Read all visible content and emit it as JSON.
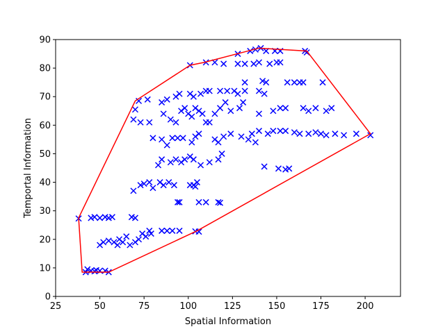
{
  "chart_data": {
    "type": "scatter",
    "xlabel": "Spatial Information",
    "ylabel": "Temportal Information",
    "xlim": [
      25,
      220
    ],
    "ylim": [
      0,
      90
    ],
    "xticks": [
      25,
      50,
      75,
      100,
      125,
      150,
      175,
      200
    ],
    "yticks": [
      0,
      10,
      20,
      30,
      40,
      50,
      60,
      70,
      80,
      90
    ],
    "points": {
      "color": "#0000ff",
      "marker": "x",
      "x": [
        43,
        45,
        47,
        50,
        53,
        55,
        42,
        48,
        45,
        47,
        50,
        53,
        55,
        57,
        68,
        70,
        38,
        50,
        52,
        55,
        58,
        60,
        61,
        63,
        65,
        67,
        70,
        72,
        74,
        76,
        78,
        79,
        85,
        88,
        91,
        95,
        104,
        106,
        94,
        95,
        106,
        110,
        117,
        118,
        69,
        73,
        75,
        78,
        80,
        84,
        86,
        89,
        92,
        101,
        103,
        105,
        104,
        83,
        85,
        90,
        93,
        96,
        98,
        101,
        103,
        107,
        112,
        117,
        119,
        143,
        151,
        155,
        157,
        80,
        85,
        88,
        91,
        94,
        97,
        102,
        104,
        106,
        115,
        117,
        120,
        124,
        130,
        134,
        136,
        138,
        140,
        145,
        148,
        152,
        155,
        160,
        163,
        168,
        172,
        175,
        178,
        183,
        188,
        195,
        203,
        73,
        69,
        78,
        86,
        90,
        93,
        96,
        98,
        100,
        102,
        104,
        106,
        108,
        110,
        112,
        115,
        118,
        121,
        124,
        129,
        131,
        140,
        148,
        152,
        155,
        165,
        168,
        172,
        178,
        181,
        70,
        72,
        77,
        85,
        88,
        93,
        95,
        101,
        103,
        107,
        110,
        112,
        118,
        122,
        126,
        128,
        132,
        140,
        143,
        132,
        142,
        144,
        156,
        160,
        163,
        165,
        176,
        101,
        110,
        115,
        120,
        128,
        132,
        137,
        140,
        146,
        150,
        152,
        128,
        135,
        138,
        141,
        144,
        149,
        152,
        166,
        167
      ],
      "y": [
        9.5,
        9,
        8.8,
        9,
        9,
        8.5,
        8.5,
        9.2,
        27.5,
        27.8,
        27.5,
        27.8,
        27.5,
        27.8,
        27.8,
        27.5,
        27.3,
        18,
        19,
        19.5,
        19,
        18,
        20,
        19,
        21,
        18,
        19,
        20,
        22,
        21,
        23,
        22,
        23,
        23,
        23,
        23,
        22.8,
        22.7,
        33,
        33,
        33,
        33,
        33,
        32.8,
        37,
        39,
        39.5,
        40,
        38,
        40,
        39,
        40,
        39,
        39,
        39,
        40,
        38.5,
        46,
        48,
        47,
        48,
        47,
        48,
        49,
        48,
        46,
        47,
        48,
        50,
        45.5,
        44.8,
        44.5,
        44.8,
        55.5,
        55,
        53,
        55.5,
        55.5,
        55.5,
        54,
        56,
        57,
        55,
        54,
        56,
        57,
        56,
        55,
        57,
        54,
        58,
        57,
        58,
        58,
        58,
        57.5,
        57,
        57,
        57.5,
        57,
        56.5,
        57,
        56.5,
        57,
        56.5,
        61,
        62,
        61,
        64,
        62,
        61,
        65,
        66,
        64,
        63,
        66,
        65,
        64,
        61,
        61,
        64,
        66,
        68,
        65,
        66,
        68,
        64,
        65,
        66,
        66,
        66,
        65,
        66,
        65,
        66,
        65.5,
        68.5,
        69,
        68,
        69,
        70,
        71,
        71,
        70,
        71,
        72,
        72,
        72,
        72,
        72,
        71,
        72,
        72,
        71,
        75,
        75.5,
        75,
        75,
        75,
        75,
        75,
        75,
        81,
        82,
        82,
        81.5,
        81.5,
        81.5,
        81.5,
        82,
        81.5,
        82,
        82,
        85,
        86,
        86.5,
        87,
        86,
        86,
        86,
        86,
        85.5
      ]
    },
    "hull": {
      "color": "#ff0000",
      "x": [
        38,
        40,
        55,
        105,
        203,
        167,
        140,
        109,
        101,
        70,
        38
      ],
      "y": [
        27.5,
        8.5,
        8.5,
        23,
        57,
        86,
        87,
        82,
        81,
        68.5,
        27.5
      ]
    }
  }
}
